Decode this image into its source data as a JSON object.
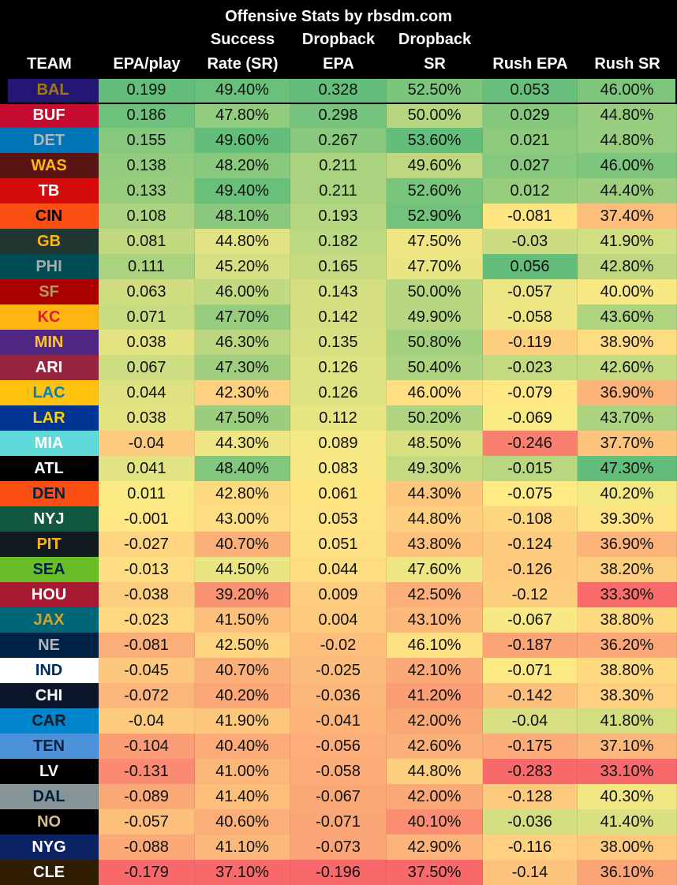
{
  "header": {
    "title": "Offensive Stats by rbsdm.com",
    "columns": [
      {
        "key": "team",
        "lines": [
          "TEAM"
        ]
      },
      {
        "key": "epa_play",
        "lines": [
          "EPA/play"
        ]
      },
      {
        "key": "success_rate",
        "lines": [
          "Success",
          "Rate (SR)"
        ]
      },
      {
        "key": "dropback_epa",
        "lines": [
          "Dropback",
          "EPA"
        ]
      },
      {
        "key": "dropback_sr",
        "lines": [
          "Dropback",
          "SR"
        ]
      },
      {
        "key": "rush_epa",
        "lines": [
          "Rush EPA"
        ]
      },
      {
        "key": "rush_sr",
        "lines": [
          "Rush SR"
        ]
      }
    ]
  },
  "rows": [
    {
      "team": "BAL",
      "bg": "#241773",
      "fg": "#9E7C0C",
      "epa_play": "0.199",
      "success_rate": "49.40%",
      "dropback_epa": "0.328",
      "dropback_sr": "52.50%",
      "rush_epa": "0.053",
      "rush_sr": "46.00%"
    },
    {
      "team": "BUF",
      "bg": "#C60C30",
      "fg": "#FFFFFF",
      "epa_play": "0.186",
      "success_rate": "47.80%",
      "dropback_epa": "0.298",
      "dropback_sr": "50.00%",
      "rush_epa": "0.029",
      "rush_sr": "44.80%"
    },
    {
      "team": "DET",
      "bg": "#0076B6",
      "fg": "#B0B7BC",
      "epa_play": "0.155",
      "success_rate": "49.60%",
      "dropback_epa": "0.267",
      "dropback_sr": "53.60%",
      "rush_epa": "0.021",
      "rush_sr": "44.80%"
    },
    {
      "team": "WAS",
      "bg": "#5A1414",
      "fg": "#FFB612",
      "epa_play": "0.138",
      "success_rate": "48.20%",
      "dropback_epa": "0.211",
      "dropback_sr": "49.60%",
      "rush_epa": "0.027",
      "rush_sr": "46.00%"
    },
    {
      "team": "TB",
      "bg": "#D50A0A",
      "fg": "#FFFFFF",
      "epa_play": "0.133",
      "success_rate": "49.40%",
      "dropback_epa": "0.211",
      "dropback_sr": "52.60%",
      "rush_epa": "0.012",
      "rush_sr": "44.40%"
    },
    {
      "team": "CIN",
      "bg": "#FB4F14",
      "fg": "#000000",
      "epa_play": "0.108",
      "success_rate": "48.10%",
      "dropback_epa": "0.193",
      "dropback_sr": "52.90%",
      "rush_epa": "-0.081",
      "rush_sr": "37.40%"
    },
    {
      "team": "GB",
      "bg": "#203731",
      "fg": "#FFB612",
      "epa_play": "0.081",
      "success_rate": "44.80%",
      "dropback_epa": "0.182",
      "dropback_sr": "47.50%",
      "rush_epa": "-0.03",
      "rush_sr": "41.90%"
    },
    {
      "team": "PHI",
      "bg": "#004C54",
      "fg": "#A5ACAF",
      "epa_play": "0.111",
      "success_rate": "45.20%",
      "dropback_epa": "0.165",
      "dropback_sr": "47.70%",
      "rush_epa": "0.056",
      "rush_sr": "42.80%"
    },
    {
      "team": "SF",
      "bg": "#AA0000",
      "fg": "#B3995D",
      "epa_play": "0.063",
      "success_rate": "46.00%",
      "dropback_epa": "0.143",
      "dropback_sr": "50.00%",
      "rush_epa": "-0.057",
      "rush_sr": "40.00%"
    },
    {
      "team": "KC",
      "bg": "#FFB612",
      "fg": "#E31837",
      "epa_play": "0.071",
      "success_rate": "47.70%",
      "dropback_epa": "0.142",
      "dropback_sr": "49.90%",
      "rush_epa": "-0.058",
      "rush_sr": "43.60%"
    },
    {
      "team": "MIN",
      "bg": "#4F2683",
      "fg": "#FFC62F",
      "epa_play": "0.038",
      "success_rate": "46.30%",
      "dropback_epa": "0.135",
      "dropback_sr": "50.80%",
      "rush_epa": "-0.119",
      "rush_sr": "38.90%"
    },
    {
      "team": "ARI",
      "bg": "#97233F",
      "fg": "#FFFFFF",
      "epa_play": "0.067",
      "success_rate": "47.30%",
      "dropback_epa": "0.126",
      "dropback_sr": "50.40%",
      "rush_epa": "-0.023",
      "rush_sr": "42.60%"
    },
    {
      "team": "LAC",
      "bg": "#FFC20E",
      "fg": "#0080C6",
      "epa_play": "0.044",
      "success_rate": "42.30%",
      "dropback_epa": "0.126",
      "dropback_sr": "46.00%",
      "rush_epa": "-0.079",
      "rush_sr": "36.90%"
    },
    {
      "team": "LAR",
      "bg": "#003594",
      "fg": "#FFD100",
      "epa_play": "0.038",
      "success_rate": "47.50%",
      "dropback_epa": "0.112",
      "dropback_sr": "50.20%",
      "rush_epa": "-0.069",
      "rush_sr": "43.70%"
    },
    {
      "team": "MIA",
      "bg": "#5FD9D9",
      "fg": "#FFFFFF",
      "epa_play": "-0.04",
      "success_rate": "44.30%",
      "dropback_epa": "0.089",
      "dropback_sr": "48.50%",
      "rush_epa": "-0.246",
      "rush_sr": "37.70%"
    },
    {
      "team": "ATL",
      "bg": "#000000",
      "fg": "#FFFFFF",
      "epa_play": "0.041",
      "success_rate": "48.40%",
      "dropback_epa": "0.083",
      "dropback_sr": "49.30%",
      "rush_epa": "-0.015",
      "rush_sr": "47.30%"
    },
    {
      "team": "DEN",
      "bg": "#FB4F14",
      "fg": "#002244",
      "epa_play": "0.011",
      "success_rate": "42.80%",
      "dropback_epa": "0.061",
      "dropback_sr": "44.30%",
      "rush_epa": "-0.075",
      "rush_sr": "40.20%"
    },
    {
      "team": "NYJ",
      "bg": "#125740",
      "fg": "#FFFFFF",
      "epa_play": "-0.001",
      "success_rate": "43.00%",
      "dropback_epa": "0.053",
      "dropback_sr": "44.80%",
      "rush_epa": "-0.108",
      "rush_sr": "39.30%"
    },
    {
      "team": "PIT",
      "bg": "#101820",
      "fg": "#FFB612",
      "epa_play": "-0.027",
      "success_rate": "40.70%",
      "dropback_epa": "0.051",
      "dropback_sr": "43.80%",
      "rush_epa": "-0.124",
      "rush_sr": "36.90%"
    },
    {
      "team": "SEA",
      "bg": "#69BE28",
      "fg": "#002244",
      "epa_play": "-0.013",
      "success_rate": "44.50%",
      "dropback_epa": "0.044",
      "dropback_sr": "47.60%",
      "rush_epa": "-0.126",
      "rush_sr": "38.20%"
    },
    {
      "team": "HOU",
      "bg": "#A71930",
      "fg": "#FFFFFF",
      "epa_play": "-0.038",
      "success_rate": "39.20%",
      "dropback_epa": "0.009",
      "dropback_sr": "42.50%",
      "rush_epa": "-0.12",
      "rush_sr": "33.30%"
    },
    {
      "team": "JAX",
      "bg": "#006778",
      "fg": "#D7A22A",
      "epa_play": "-0.023",
      "success_rate": "41.50%",
      "dropback_epa": "0.004",
      "dropback_sr": "43.10%",
      "rush_epa": "-0.067",
      "rush_sr": "38.80%"
    },
    {
      "team": "NE",
      "bg": "#002244",
      "fg": "#B0B7BC",
      "epa_play": "-0.081",
      "success_rate": "42.50%",
      "dropback_epa": "-0.02",
      "dropback_sr": "46.10%",
      "rush_epa": "-0.187",
      "rush_sr": "36.20%"
    },
    {
      "team": "IND",
      "bg": "#FFFFFF",
      "fg": "#002C5F",
      "epa_play": "-0.045",
      "success_rate": "40.70%",
      "dropback_epa": "-0.025",
      "dropback_sr": "42.10%",
      "rush_epa": "-0.071",
      "rush_sr": "38.80%"
    },
    {
      "team": "CHI",
      "bg": "#0B162A",
      "fg": "#FFFFFF",
      "epa_play": "-0.072",
      "success_rate": "40.20%",
      "dropback_epa": "-0.036",
      "dropback_sr": "41.20%",
      "rush_epa": "-0.142",
      "rush_sr": "38.30%"
    },
    {
      "team": "CAR",
      "bg": "#0085CA",
      "fg": "#101820",
      "epa_play": "-0.04",
      "success_rate": "41.90%",
      "dropback_epa": "-0.041",
      "dropback_sr": "42.00%",
      "rush_epa": "-0.04",
      "rush_sr": "41.80%"
    },
    {
      "team": "TEN",
      "bg": "#4B92DB",
      "fg": "#0C2340",
      "epa_play": "-0.104",
      "success_rate": "40.40%",
      "dropback_epa": "-0.056",
      "dropback_sr": "42.60%",
      "rush_epa": "-0.175",
      "rush_sr": "37.10%"
    },
    {
      "team": "LV",
      "bg": "#000000",
      "fg": "#FFFFFF",
      "epa_play": "-0.131",
      "success_rate": "41.00%",
      "dropback_epa": "-0.058",
      "dropback_sr": "44.80%",
      "rush_epa": "-0.283",
      "rush_sr": "33.10%"
    },
    {
      "team": "DAL",
      "bg": "#869397",
      "fg": "#041E42",
      "epa_play": "-0.089",
      "success_rate": "41.40%",
      "dropback_epa": "-0.067",
      "dropback_sr": "42.00%",
      "rush_epa": "-0.128",
      "rush_sr": "40.30%"
    },
    {
      "team": "NO",
      "bg": "#000000",
      "fg": "#D3BC8D",
      "epa_play": "-0.057",
      "success_rate": "40.60%",
      "dropback_epa": "-0.071",
      "dropback_sr": "40.10%",
      "rush_epa": "-0.036",
      "rush_sr": "41.40%"
    },
    {
      "team": "NYG",
      "bg": "#0B2265",
      "fg": "#FFFFFF",
      "epa_play": "-0.088",
      "success_rate": "41.10%",
      "dropback_epa": "-0.073",
      "dropback_sr": "42.90%",
      "rush_epa": "-0.116",
      "rush_sr": "38.00%"
    },
    {
      "team": "CLE",
      "bg": "#311D00",
      "fg": "#FFFFFF",
      "epa_play": "-0.179",
      "success_rate": "37.10%",
      "dropback_epa": "-0.196",
      "dropback_sr": "37.50%",
      "rush_epa": "-0.14",
      "rush_sr": "36.10%"
    }
  ],
  "scale_colors": {
    "low": "#F8696B",
    "mid": "#FFEB84",
    "high": "#63BE7B"
  }
}
